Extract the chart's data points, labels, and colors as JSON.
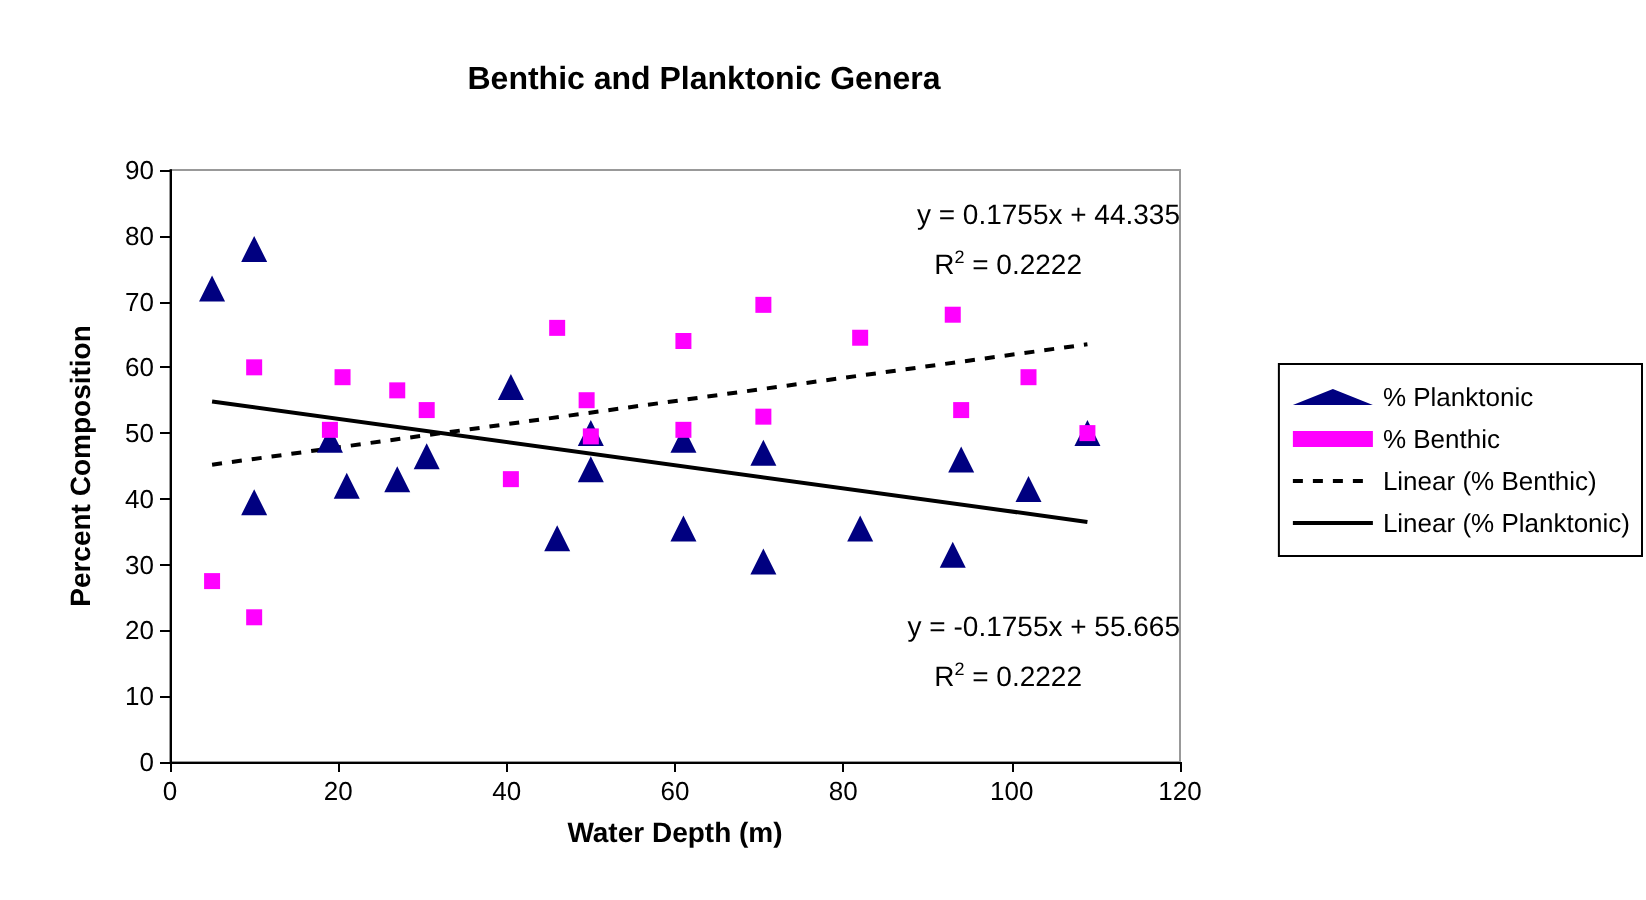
{
  "chart_data": {
    "type": "scatter",
    "title": "Benthic and Planktonic Genera",
    "xlabel": "Water Depth (m)",
    "ylabel": "Percent Composition",
    "xlim": [
      0,
      120
    ],
    "xticks": [
      0,
      20,
      40,
      60,
      80,
      100,
      120
    ],
    "ylim": [
      0,
      90
    ],
    "yticks": [
      0,
      10,
      20,
      30,
      40,
      50,
      60,
      70,
      80,
      90
    ],
    "grid": false,
    "legend": "right",
    "series": [
      {
        "name": "% Planktonic",
        "marker": "triangle",
        "color": "#000080",
        "x": [
          5,
          10,
          10,
          19,
          21,
          27,
          30.5,
          40.5,
          46,
          50,
          50,
          61,
          61,
          70.5,
          70.5,
          82,
          93,
          94,
          102,
          109
        ],
        "values": [
          72,
          78,
          39.5,
          49,
          42,
          43,
          46.5,
          57,
          34,
          50,
          44.5,
          49,
          35.5,
          47,
          30.5,
          35.5,
          31.5,
          46,
          41.5,
          50
        ]
      },
      {
        "name": "% Benthic",
        "marker": "square",
        "color": "#ff00ff",
        "x": [
          5,
          10,
          10,
          19,
          20.5,
          27,
          30.5,
          40.5,
          46,
          49.5,
          50,
          61,
          61,
          70.5,
          70.5,
          82,
          93,
          94,
          102,
          109
        ],
        "values": [
          27.5,
          60,
          22,
          50.5,
          58.5,
          56.5,
          53.5,
          43,
          66,
          55,
          49.5,
          64,
          50.5,
          69.5,
          52.5,
          64.5,
          68,
          53.5,
          58.5,
          50
        ]
      },
      {
        "name": "Linear (% Benthic)",
        "type": "line",
        "line_style": "dashed",
        "marker": "none",
        "color": "#000000",
        "x": [
          5,
          109
        ],
        "values": [
          45.2,
          63.5
        ]
      },
      {
        "name": "Linear (% Planktonic)",
        "type": "line",
        "line_style": "solid",
        "marker": "none",
        "color": "#000000",
        "x": [
          5,
          109
        ],
        "values": [
          54.8,
          36.5
        ]
      }
    ],
    "annotations": [
      "y = 0.1755x + 44.335",
      "R$^{2}$ = 0.2222",
      "y = -0.1755x + 55.665",
      "R$^{2}$ = 0.2222"
    ]
  }
}
